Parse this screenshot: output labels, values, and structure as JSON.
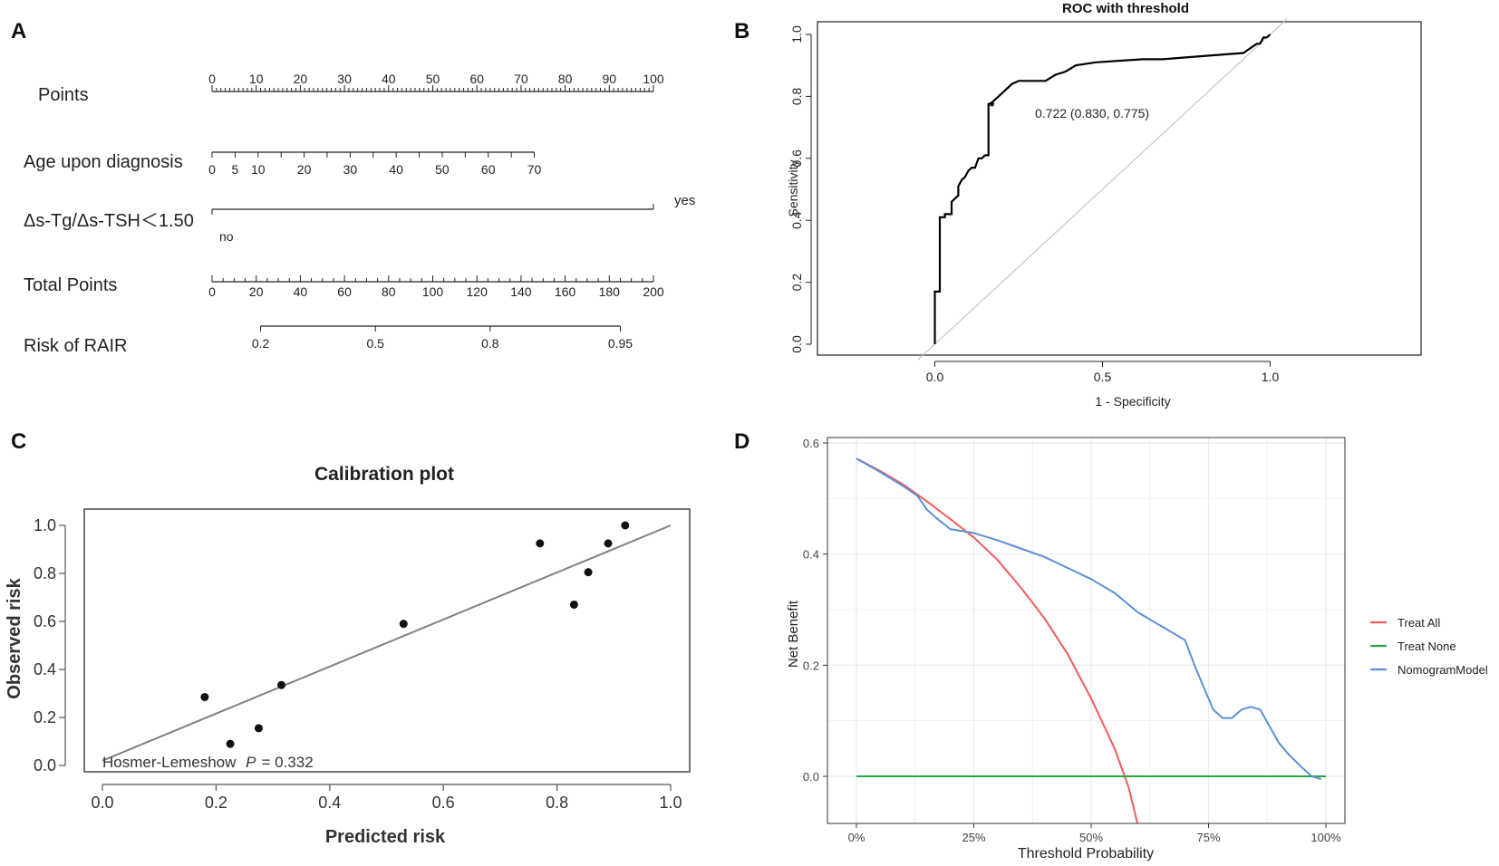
{
  "colors": {
    "ink": "#222222",
    "roc_curve": "#000000",
    "reference": "#bbbbbb",
    "calib_line": "#808080",
    "grid": "#ebebeb",
    "treat_all": "#f15a5a",
    "treat_none": "#27a844",
    "nomogram": "#5b8fd6"
  },
  "panels": {
    "A": {
      "label": "A",
      "rows": [
        {
          "label": "Points",
          "ticks": [
            "0",
            "10",
            "20",
            "30",
            "40",
            "50",
            "60",
            "70",
            "80",
            "90",
            "100"
          ]
        },
        {
          "label": "Age upon diagnosis",
          "ticks": [
            "0",
            "5",
            "10",
            "20",
            "30",
            "40",
            "50",
            "60",
            "70"
          ]
        },
        {
          "label": "Δs-Tg/Δs-TSH＜1.50",
          "low": "no",
          "high": "yes"
        },
        {
          "label": "Total Points",
          "ticks": [
            "0",
            "20",
            "40",
            "60",
            "80",
            "100",
            "120",
            "140",
            "160",
            "180",
            "200"
          ]
        },
        {
          "label": "Risk of RAIR",
          "ticks": [
            "0.2",
            "0.5",
            "0.8",
            "0.95"
          ]
        }
      ]
    },
    "B": {
      "label": "B"
    },
    "C": {
      "label": "C"
    },
    "D": {
      "label": "D"
    }
  },
  "chart_data": [
    {
      "type": "nomogram",
      "panel": "A",
      "scales": [
        {
          "name": "Points",
          "min": 0,
          "max": 100,
          "major_ticks": [
            0,
            10,
            20,
            30,
            40,
            50,
            60,
            70,
            80,
            90,
            100
          ]
        },
        {
          "name": "Age upon diagnosis",
          "values": [
            0,
            5,
            10,
            20,
            30,
            40,
            50,
            60,
            70
          ],
          "points_at_min": 0,
          "points_at_70": 73
        },
        {
          "name": "Δs-Tg/Δs-TSH＜1.50",
          "levels": [
            "no",
            "yes"
          ],
          "points": [
            0,
            100
          ]
        },
        {
          "name": "Total Points",
          "min": 0,
          "max": 200,
          "major_ticks": [
            0,
            20,
            40,
            60,
            80,
            100,
            120,
            140,
            160,
            180,
            200
          ]
        },
        {
          "name": "Risk of RAIR",
          "values": [
            0.2,
            0.5,
            0.8,
            0.95
          ],
          "total_points": [
            22,
            74,
            126,
            185
          ]
        }
      ]
    },
    {
      "type": "line",
      "panel": "B",
      "title": "ROC with threshold",
      "xlabel": "1 - Specificity",
      "ylabel": "Sensitivity",
      "xlim": [
        -0.35,
        1.45
      ],
      "ylim": [
        0,
        1
      ],
      "xticks": [
        "0.0",
        "0.5",
        "1.0"
      ],
      "yticks": [
        "0.0",
        "0.2",
        "0.4",
        "0.6",
        "0.8",
        "1.0"
      ],
      "threshold_label": "0.722 (0.830, 0.775)",
      "threshold_point": [
        0.17,
        0.775
      ],
      "series": [
        {
          "name": "ROC",
          "x": [
            0,
            0,
            0.015,
            0.015,
            0.03,
            0.03,
            0.05,
            0.05,
            0.07,
            0.07,
            0.08,
            0.09,
            0.1,
            0.11,
            0.12,
            0.13,
            0.14,
            0.15,
            0.16,
            0.16,
            0.17,
            0.19,
            0.21,
            0.23,
            0.25,
            0.33,
            0.36,
            0.39,
            0.42,
            0.48,
            0.62,
            0.68,
            0.8,
            0.92,
            0.96,
            0.97,
            0.98,
            0.99,
            1.0
          ],
          "y": [
            0,
            0.17,
            0.17,
            0.41,
            0.41,
            0.42,
            0.42,
            0.46,
            0.48,
            0.51,
            0.53,
            0.54,
            0.56,
            0.57,
            0.57,
            0.6,
            0.6,
            0.61,
            0.61,
            0.775,
            0.78,
            0.8,
            0.82,
            0.84,
            0.85,
            0.85,
            0.87,
            0.88,
            0.9,
            0.91,
            0.92,
            0.92,
            0.93,
            0.94,
            0.97,
            0.97,
            0.99,
            0.99,
            1.0
          ]
        },
        {
          "name": "Reference",
          "x": [
            -0.05,
            1.05
          ],
          "y": [
            -0.05,
            1.05
          ]
        }
      ]
    },
    {
      "type": "scatter",
      "panel": "C",
      "title": "Calibration plot",
      "xlabel": "Predicted risk",
      "ylabel": "Observed risk",
      "xlim": [
        0,
        1
      ],
      "ylim": [
        0,
        1
      ],
      "xticks": [
        "0.0",
        "0.2",
        "0.4",
        "0.6",
        "0.8",
        "1.0"
      ],
      "yticks": [
        "0.0",
        "0.2",
        "0.4",
        "0.6",
        "0.8",
        "1.0"
      ],
      "annotation_prefix": "Hosmer-Lemeshow",
      "annotation_p": "P",
      "annotation_value": "= 0.332",
      "points": {
        "x": [
          0.18,
          0.225,
          0.275,
          0.315,
          0.53,
          0.77,
          0.83,
          0.855,
          0.89,
          0.92
        ],
        "y": [
          0.285,
          0.09,
          0.155,
          0.335,
          0.59,
          0.925,
          0.67,
          0.805,
          0.925,
          1.0
        ]
      },
      "fit_line": {
        "x": [
          0.0,
          1.0
        ],
        "y": [
          0.02,
          1.0
        ]
      }
    },
    {
      "type": "line",
      "panel": "D",
      "xlabel": "Threshold Probability",
      "ylabel": "Net Benefit",
      "xlim": [
        0,
        1
      ],
      "ylim": [
        -0.09,
        0.62
      ],
      "xticks": [
        "0%",
        "25%",
        "50%",
        "75%",
        "100%"
      ],
      "yticks": [
        "0.0",
        "0.2",
        "0.4",
        "0.6"
      ],
      "legend_position": "right",
      "series": [
        {
          "name": "Treat All",
          "x": [
            0,
            0.05,
            0.1,
            0.15,
            0.2,
            0.25,
            0.3,
            0.35,
            0.4,
            0.45,
            0.5,
            0.55,
            0.58,
            0.6
          ],
          "y": [
            0.572,
            0.55,
            0.525,
            0.495,
            0.463,
            0.43,
            0.39,
            0.34,
            0.285,
            0.22,
            0.14,
            0.05,
            -0.02,
            -0.09
          ]
        },
        {
          "name": "Treat None",
          "x": [
            0,
            1
          ],
          "y": [
            0,
            0
          ]
        },
        {
          "name": "NomogramModel",
          "x": [
            0,
            0.05,
            0.1,
            0.13,
            0.15,
            0.17,
            0.2,
            0.22,
            0.25,
            0.3,
            0.35,
            0.4,
            0.45,
            0.5,
            0.55,
            0.6,
            0.65,
            0.7,
            0.72,
            0.74,
            0.76,
            0.78,
            0.8,
            0.82,
            0.84,
            0.86,
            0.88,
            0.9,
            0.92,
            0.95,
            0.97,
            0.99
          ],
          "y": [
            0.572,
            0.548,
            0.522,
            0.505,
            0.48,
            0.465,
            0.445,
            0.442,
            0.438,
            0.425,
            0.41,
            0.395,
            0.375,
            0.355,
            0.33,
            0.295,
            0.27,
            0.245,
            0.2,
            0.16,
            0.12,
            0.105,
            0.105,
            0.12,
            0.125,
            0.12,
            0.09,
            0.06,
            0.04,
            0.015,
            0.0,
            -0.005
          ]
        }
      ]
    }
  ]
}
